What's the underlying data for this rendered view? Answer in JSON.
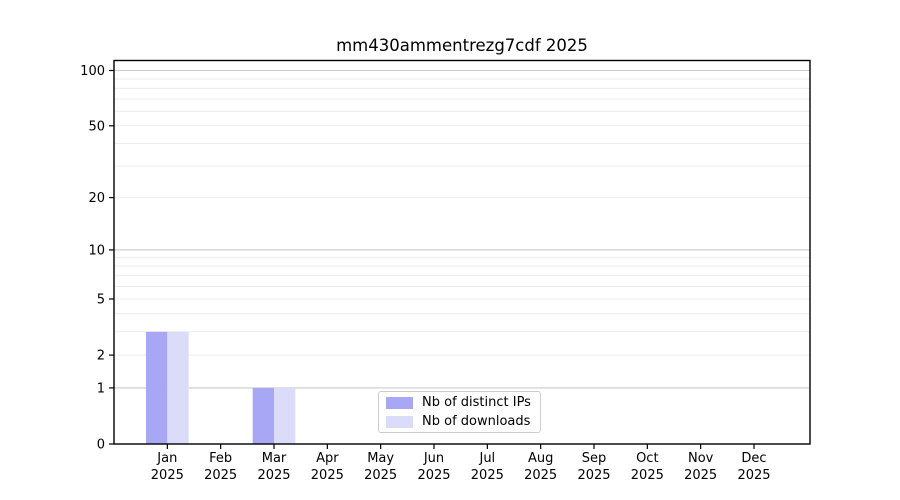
{
  "chart_data": {
    "type": "bar",
    "title": "mm430ammentrezg7cdf 2025",
    "x_tick_months": [
      "Jan",
      "Feb",
      "Mar",
      "Apr",
      "May",
      "Jun",
      "Jul",
      "Aug",
      "Sep",
      "Oct",
      "Nov",
      "Dec"
    ],
    "x_tick_year": "2025",
    "categories": [
      "Jan 2025",
      "Feb 2025",
      "Mar 2025",
      "Apr 2025",
      "May 2025",
      "Jun 2025",
      "Jul 2025",
      "Aug 2025",
      "Sep 2025",
      "Oct 2025",
      "Nov 2025",
      "Dec 2025"
    ],
    "series": [
      {
        "name": "Nb of distinct IPs",
        "color": "#a7a7f5",
        "values": [
          3,
          0,
          1,
          0,
          0,
          0,
          0,
          0,
          0,
          0,
          0,
          0
        ]
      },
      {
        "name": "Nb of downloads",
        "color": "#dbdbfa",
        "values": [
          3,
          0,
          1,
          0,
          0,
          0,
          0,
          0,
          0,
          0,
          0,
          0
        ]
      }
    ],
    "yscale": "log1p",
    "ylim": [
      0,
      113
    ],
    "y_tick_values": [
      0,
      1,
      2,
      5,
      10,
      20,
      50,
      100
    ],
    "y_major_gridlines": [
      1,
      10,
      100
    ],
    "y_minor_gridlines": [
      2,
      3,
      4,
      5,
      6,
      7,
      8,
      9,
      20,
      30,
      40,
      50,
      60,
      70,
      80,
      90
    ],
    "grid": "horizontal",
    "legend_position": "lower center",
    "colors": {
      "major_grid": "#c9c9c9",
      "minor_grid": "#ececec",
      "spine": "#000000",
      "text": "#000000"
    }
  }
}
